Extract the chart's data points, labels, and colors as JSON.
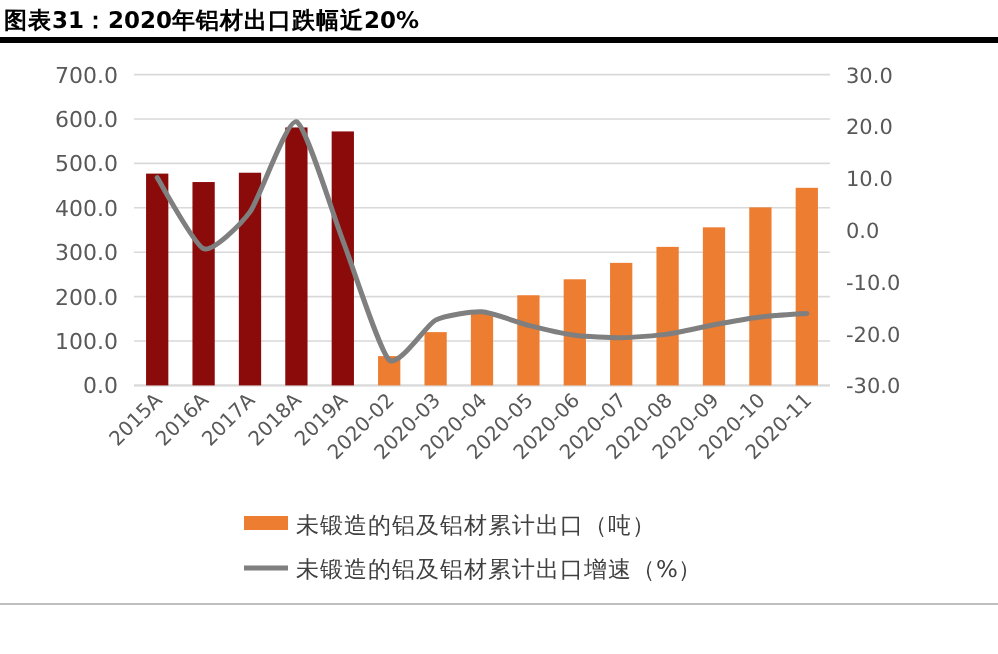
{
  "chart_data": {
    "type": "bar",
    "title": "图表31：2020年铝材出口跌幅近20%",
    "categories": [
      "2015A",
      "2016A",
      "2017A",
      "2018A",
      "2019A",
      "2020-02",
      "2020-03",
      "2020-04",
      "2020-05",
      "2020-06",
      "2020-07",
      "2020-08",
      "2020-09",
      "2020-10",
      "2020-11"
    ],
    "series": [
      {
        "name": "未锻造的铝及铝材累计出口（吨）",
        "color": "#ed7d31",
        "colors": [
          "#8b0a0a",
          "#8b0a0a",
          "#8b0a0a",
          "#8b0a0a",
          "#8b0a0a",
          "#ed7d31",
          "#ed7d31",
          "#ed7d31",
          "#ed7d31",
          "#ed7d31",
          "#ed7d31",
          "#ed7d31",
          "#ed7d31",
          "#ed7d31",
          "#ed7d31"
        ],
        "values": [
          477,
          458,
          479,
          581,
          572,
          66,
          120,
          162,
          203,
          239,
          276,
          312,
          356,
          401,
          445
        ]
      },
      {
        "name": "未锻造的铝及铝材累计出口增速（%）",
        "type": "line",
        "axis": "y2",
        "color": "#7f7f7f",
        "values": [
          10.1,
          -3.6,
          3.5,
          20.9,
          -2,
          -25.1,
          -17.4,
          -15.8,
          -18.4,
          -20.3,
          -20.8,
          -20.1,
          -18.3,
          -16.8,
          -16.1
        ]
      }
    ],
    "ylim": [
      0,
      700
    ],
    "yticks": [
      {
        "value": 0,
        "label": "0.0"
      },
      {
        "value": 100,
        "label": "100.0"
      },
      {
        "value": 200,
        "label": "200.0"
      },
      {
        "value": 300,
        "label": "300.0"
      },
      {
        "value": 400,
        "label": "400.0"
      },
      {
        "value": 500,
        "label": "500.0"
      },
      {
        "value": 600,
        "label": "600.0"
      },
      {
        "value": 700,
        "label": "700.0"
      }
    ],
    "y2lim": [
      -30,
      30
    ],
    "y2ticks": [
      {
        "value": -30,
        "label": "-30.0"
      },
      {
        "value": -20,
        "label": "-20.0"
      },
      {
        "value": -10,
        "label": "-10.0"
      },
      {
        "value": 0,
        "label": "0.0"
      },
      {
        "value": 10,
        "label": "10.0"
      },
      {
        "value": 20,
        "label": "20.0"
      },
      {
        "value": 30,
        "label": "30.0"
      }
    ],
    "grid": "y",
    "legend": "bottom"
  }
}
